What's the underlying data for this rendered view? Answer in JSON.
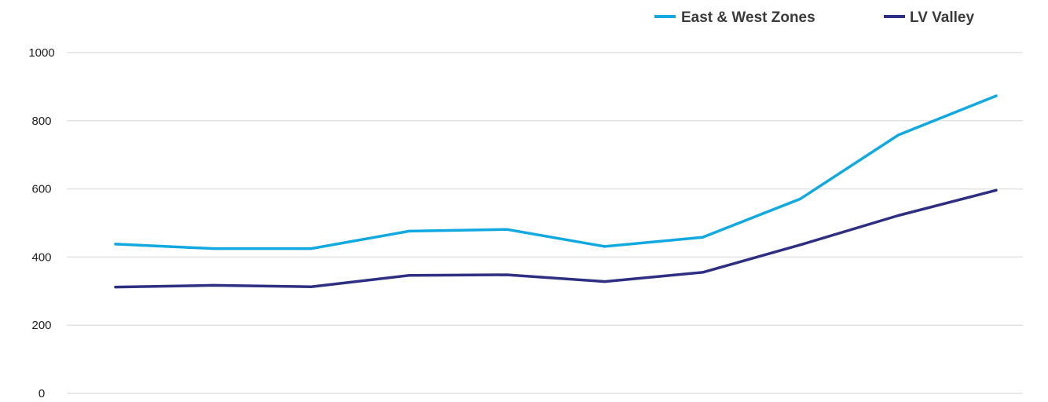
{
  "chart_data": {
    "type": "line",
    "title": "",
    "xlabel": "",
    "ylabel": "",
    "x": [
      1,
      2,
      3,
      4,
      5,
      6,
      7,
      8,
      9,
      10
    ],
    "ylim": [
      0,
      1000
    ],
    "yticks": [
      "0",
      "200",
      "400",
      "600",
      "800",
      "1000"
    ],
    "grid": true,
    "legend_position": "top-right",
    "series": [
      {
        "name": "East & West Zones",
        "color": "#12A9E0",
        "values": [
          438,
          425,
          425,
          476,
          481,
          431,
          458,
          571,
          758,
          873
        ]
      },
      {
        "name": "LV Valley",
        "color": "#2E2E82",
        "values": [
          312,
          317,
          313,
          346,
          348,
          328,
          355,
          436,
          522,
          596
        ]
      }
    ]
  }
}
